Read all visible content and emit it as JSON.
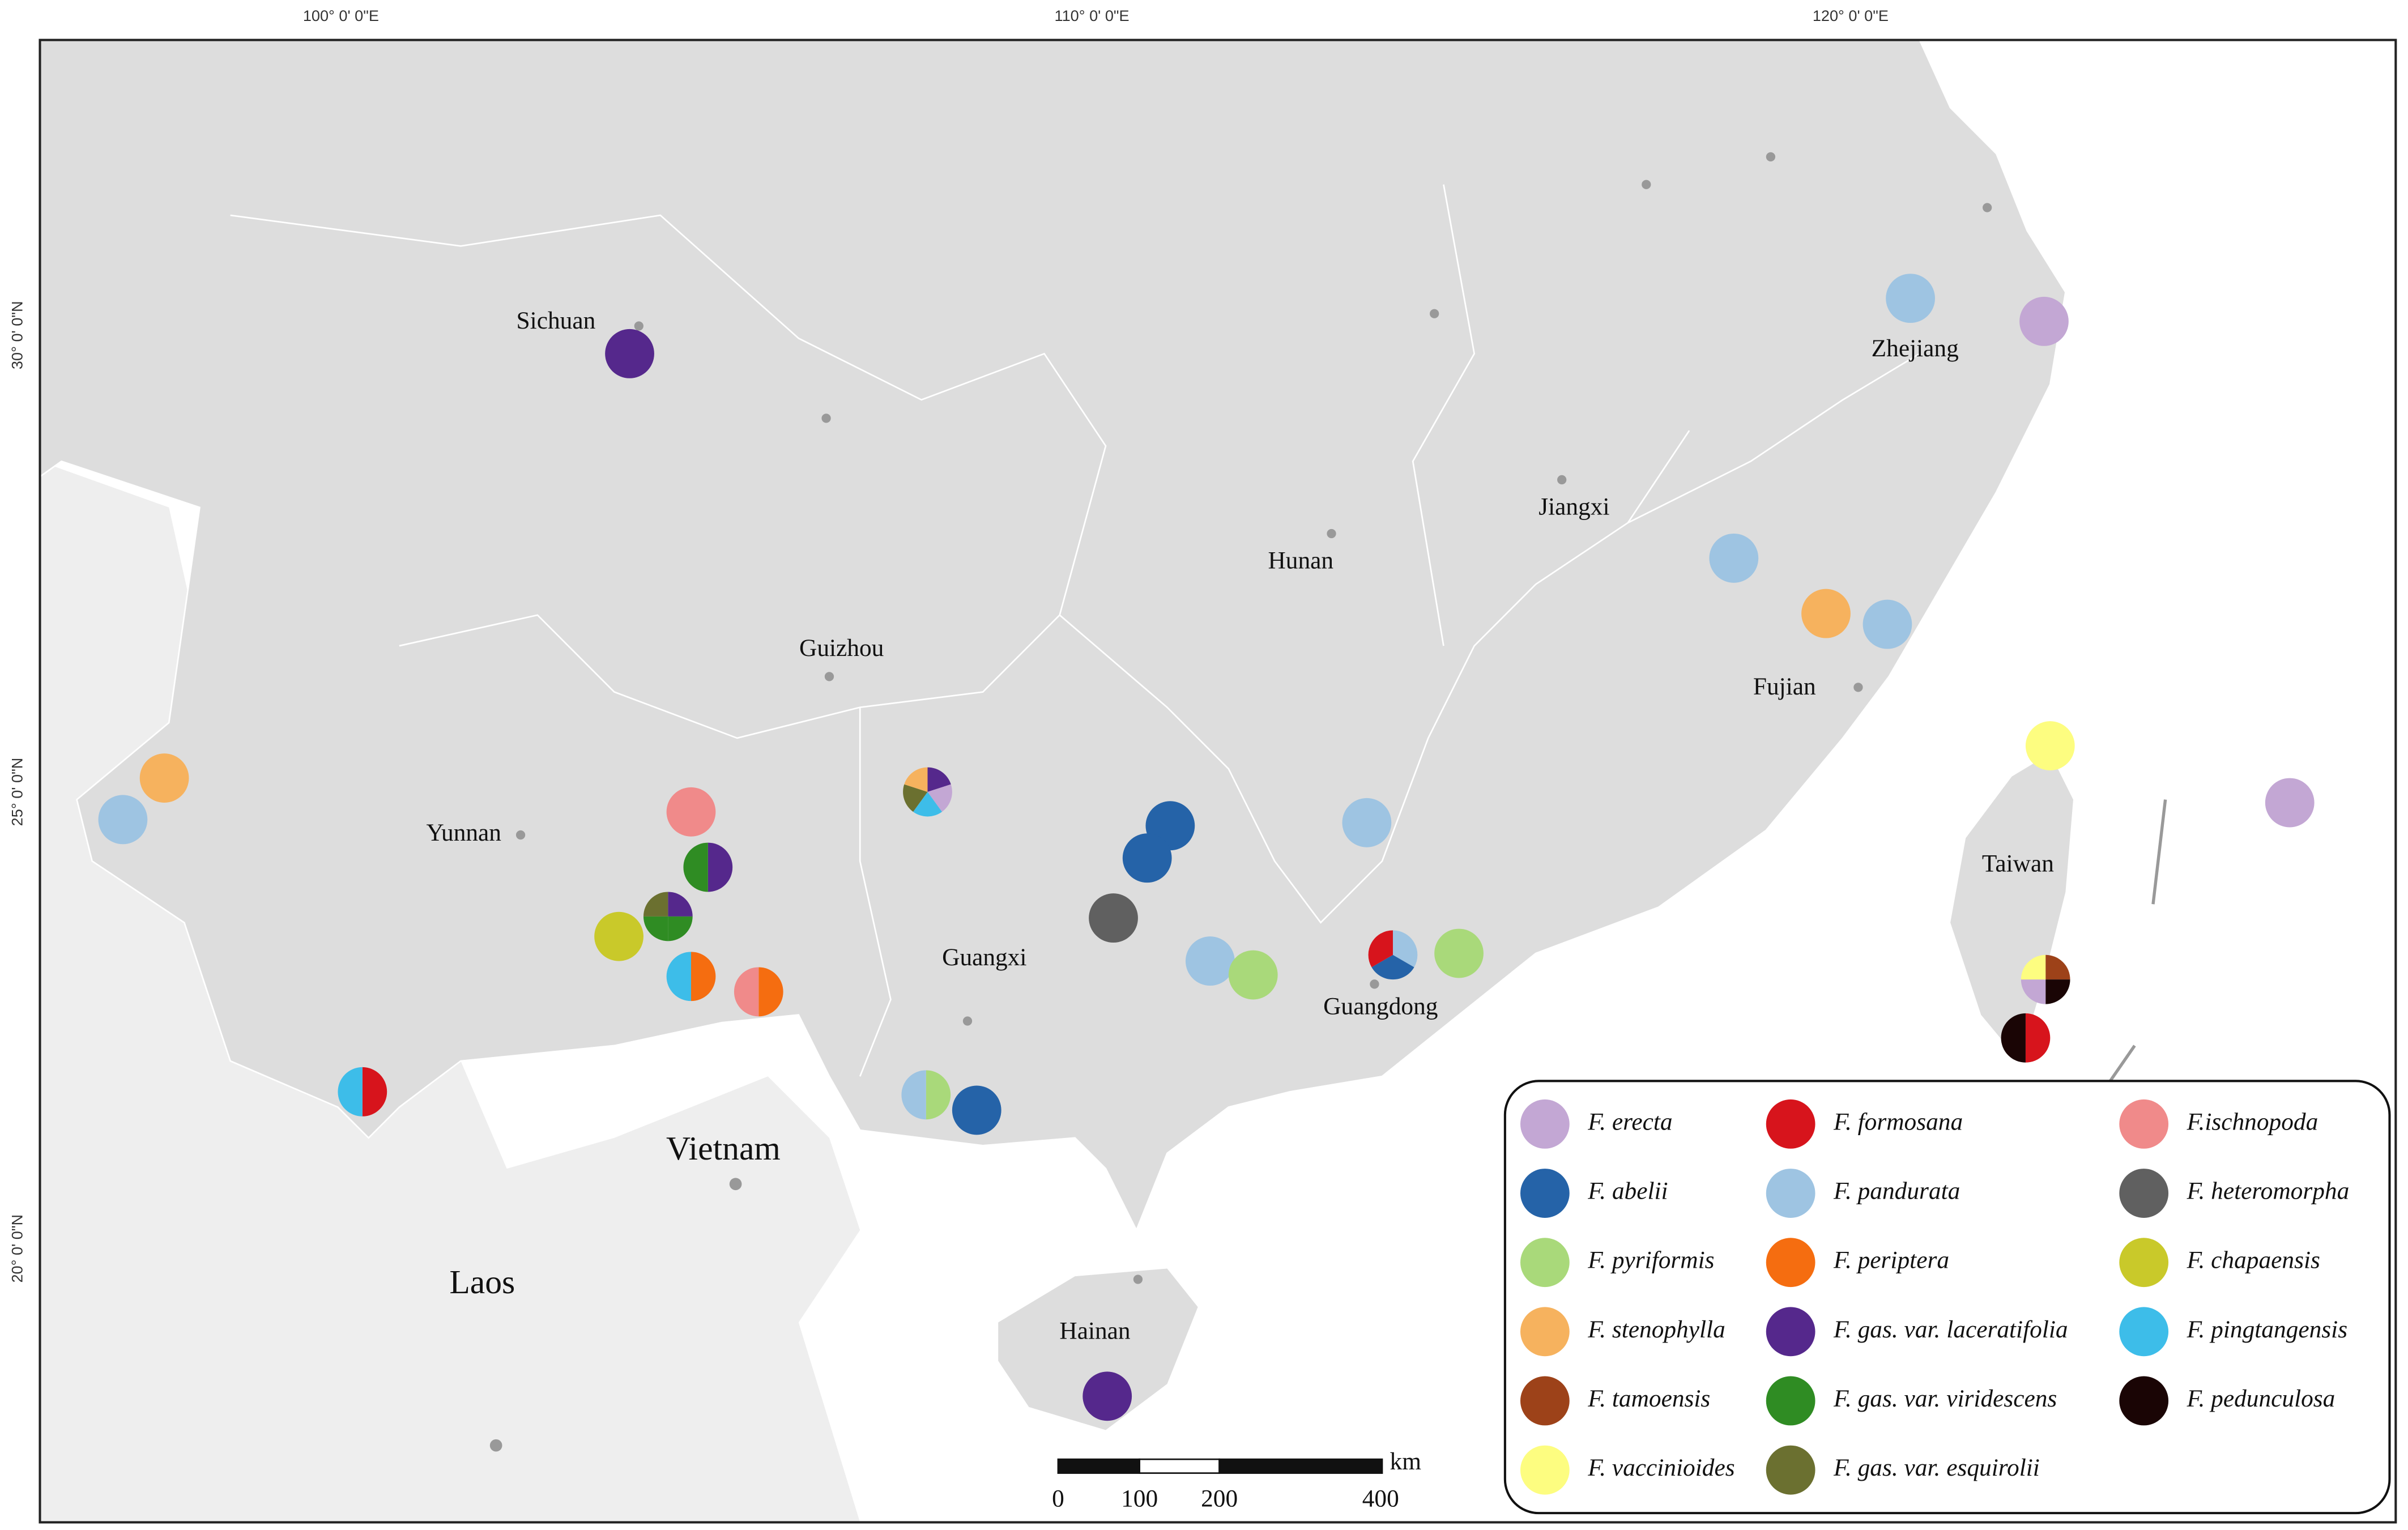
{
  "map": {
    "graticule": {
      "longitudes": [
        "100° 0' 0\"E",
        "110° 0' 0\"E",
        "120° 0' 0\"E"
      ],
      "latitudes": [
        "30° 0' 0\"N",
        "25° 0' 0\"N",
        "20° 0' 0\"N"
      ]
    },
    "places": [
      "Sichuan",
      "Guizhou",
      "Yunnan",
      "Guangxi",
      "Hunan",
      "Jiangxi",
      "Fujian",
      "Zhejiang",
      "Guangdong",
      "Taiwan",
      "Hainan"
    ],
    "countries": [
      "Vietnam",
      "Laos"
    ],
    "legend": [
      {
        "label": "F. erecta",
        "color": "#c3a7d4"
      },
      {
        "label": "F. abelii",
        "color": "#2563a8"
      },
      {
        "label": "F. pyriformis",
        "color": "#a9d97a"
      },
      {
        "label": "F. stenophylla",
        "color": "#f6b25e"
      },
      {
        "label": "F. tamoensis",
        "color": "#9d4219"
      },
      {
        "label": "F. vaccinioides",
        "color": "#fdfd80"
      },
      {
        "label": "F. formosana",
        "color": "#d7141c"
      },
      {
        "label": "F. pandurata",
        "color": "#9ec4e2"
      },
      {
        "label": "F. periptera",
        "color": "#f56d10"
      },
      {
        "label": "F. gas. var. laceratifolia",
        "color": "#55288c"
      },
      {
        "label": "F. gas. var. viridescens",
        "color": "#2f8c23"
      },
      {
        "label": "F. gas. var. esquirolii",
        "color": "#6b7030"
      },
      {
        "label": "F.ischnopoda",
        "color": "#f08a8a"
      },
      {
        "label": "F. heteromorpha",
        "color": "#606060"
      },
      {
        "label": "F. chapaensis",
        "color": "#c9c92a"
      },
      {
        "label": "F. pingtangensis",
        "color": "#3dbde9"
      },
      {
        "label": "F. pedunculosa",
        "color": "#1a0505"
      }
    ],
    "scale_bar": {
      "labels": [
        "0",
        "100",
        "200",
        "400"
      ],
      "unit": "km"
    }
  }
}
